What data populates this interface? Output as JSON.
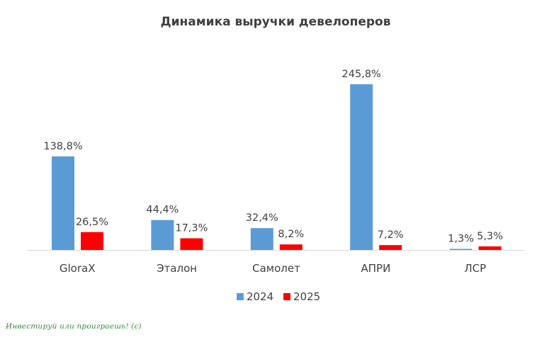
{
  "chart_data": {
    "type": "bar",
    "title": "Динамика выручки девелоперов",
    "categories": [
      "GloraX",
      "Эталон",
      "Самолет",
      "АПРИ",
      "ЛСР"
    ],
    "series": [
      {
        "name": "2024",
        "color": "#5b9bd5",
        "values": [
          138.8,
          44.4,
          32.4,
          245.8,
          1.3
        ],
        "labels": [
          "138,8%",
          "44,4%",
          "32,4%",
          "245,8%",
          "1,3%"
        ]
      },
      {
        "name": "2025",
        "color": "#ff0000",
        "values": [
          26.5,
          17.3,
          8.2,
          7.2,
          5.3
        ],
        "labels": [
          "26,5%",
          "17,3%",
          "8,2%",
          "7,2%",
          "5,3%"
        ]
      }
    ],
    "ylim": [
      0,
      245.8
    ],
    "grid": false,
    "legend_position": "bottom"
  },
  "watermark": "Инвестируй или проиграешь! (с)"
}
